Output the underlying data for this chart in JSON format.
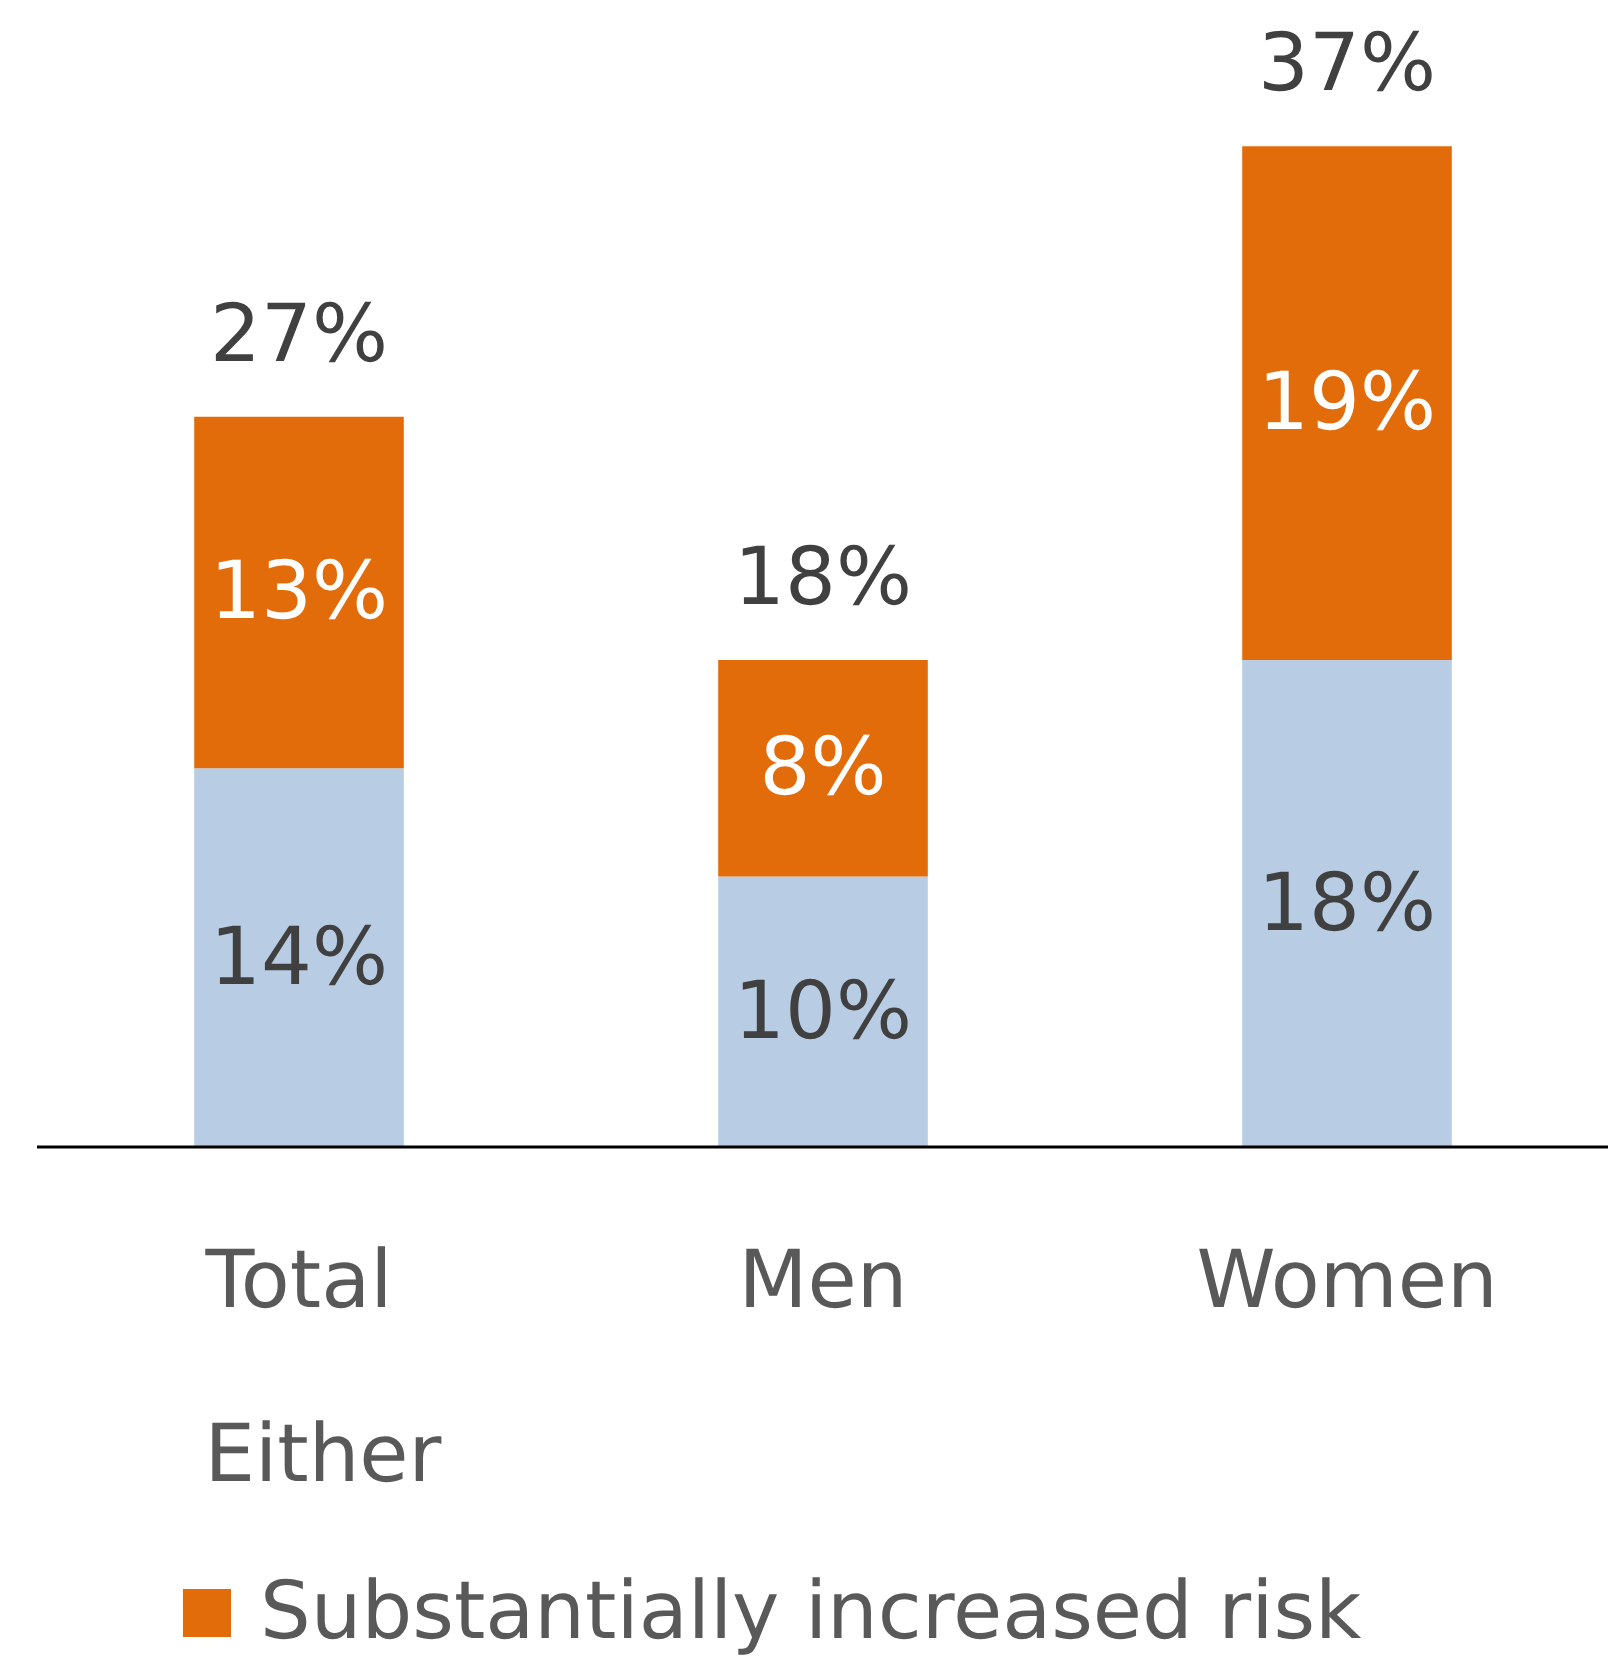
{
  "chart_data": {
    "type": "bar",
    "stacked": true,
    "categories": [
      "Total",
      "Men",
      "Women"
    ],
    "series": [
      {
        "color": "#b8cce4",
        "values": [
          14,
          10,
          18
        ],
        "value_labels": [
          "14%",
          "10%",
          "18%"
        ]
      },
      {
        "name": "Substantially increased risk",
        "color": "#e36c0a",
        "values": [
          13,
          8,
          19
        ],
        "value_labels": [
          "13%",
          "8%",
          "19%"
        ]
      }
    ],
    "totals": [
      "27%",
      "18%",
      "37%"
    ],
    "annotations": [
      "Either"
    ],
    "legend": "bottom",
    "grid": false
  }
}
